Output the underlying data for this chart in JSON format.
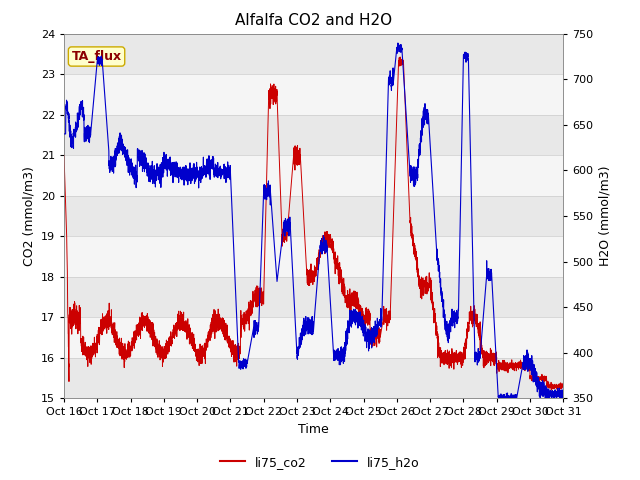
{
  "title": "Alfalfa CO2 and H2O",
  "xlabel": "Time",
  "ylabel_left": "CO2 (mmol/m3)",
  "ylabel_right": "H2O (mmol/m3)",
  "co2_label": "li75_co2",
  "h2o_label": "li75_h2o",
  "co2_color": "#cc0000",
  "h2o_color": "#0000cc",
  "ylim_left": [
    15.0,
    24.0
  ],
  "ylim_right": [
    350,
    750
  ],
  "xtick_labels": [
    "Oct 16",
    "Oct 17",
    "Oct 18",
    "Oct 19",
    "Oct 20",
    "Oct 21",
    "Oct 22",
    "Oct 23",
    "Oct 24",
    "Oct 25",
    "Oct 26",
    "Oct 27",
    "Oct 28",
    "Oct 29",
    "Oct 30",
    "Oct 31"
  ],
  "annotation_text": "TA_flux",
  "annotation_color": "#8b0000",
  "annotation_bg": "#ffffcc",
  "annotation_edge": "#ccaa00",
  "background_color": "#ffffff",
  "band_dark": "#e8e8e8",
  "band_light": "#f5f5f5",
  "title_fontsize": 11,
  "label_fontsize": 9,
  "tick_fontsize": 8
}
